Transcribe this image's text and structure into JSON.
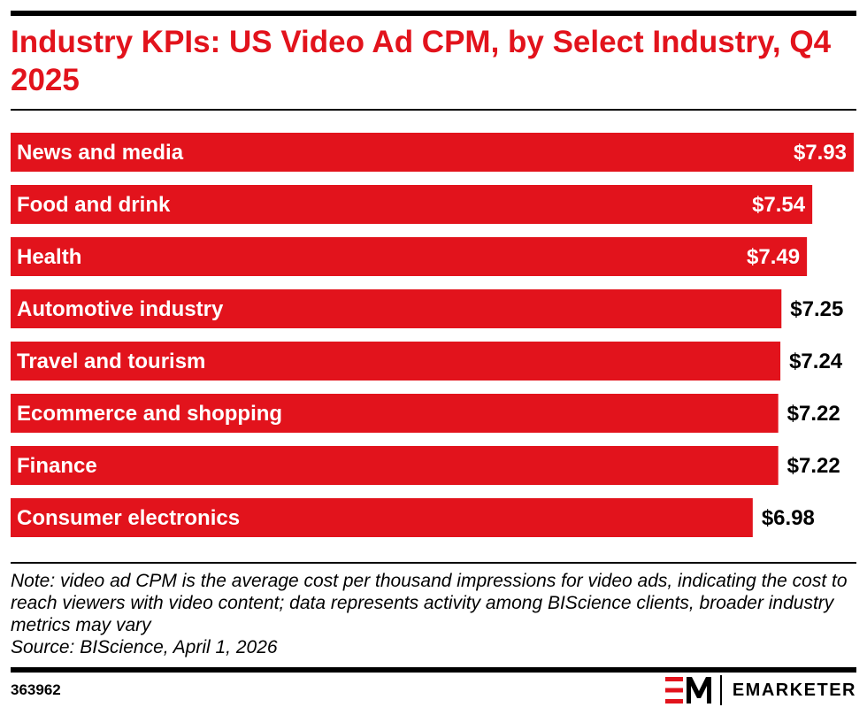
{
  "title": "Industry KPIs: US Video Ad CPM, by Select Industry, Q4 2025",
  "chart_data": {
    "type": "bar",
    "orientation": "horizontal",
    "categories": [
      "News and media",
      "Food and drink",
      "Health",
      "Automotive industry",
      "Travel and tourism",
      "Ecommerce and shopping",
      "Finance",
      "Consumer electronics"
    ],
    "values": [
      7.93,
      7.54,
      7.49,
      7.25,
      7.24,
      7.22,
      7.22,
      6.98
    ],
    "value_labels": [
      "$7.93",
      "$7.54",
      "$7.49",
      "$7.25",
      "$7.24",
      "$7.22",
      "$7.22",
      "$6.98"
    ],
    "xlim": [
      0,
      7.93
    ],
    "grid": false,
    "legend": "none",
    "bar_color": "#e2131c",
    "label_color_inside": "#ffffff",
    "label_color_outside": "#000000"
  },
  "note": {
    "text": "Note: video ad CPM is the average cost per thousand impressions for video ads, indicating the cost to reach viewers with video content; data represents activity among BIScience clients, broader industry metrics may vary",
    "source": "Source: BIScience, April 1, 2026"
  },
  "footer": {
    "chart_id": "363962",
    "brand": "EMARKETER",
    "logo_icon": "em-logo-icon"
  },
  "colors": {
    "accent": "#e2131c",
    "text": "#000000"
  }
}
